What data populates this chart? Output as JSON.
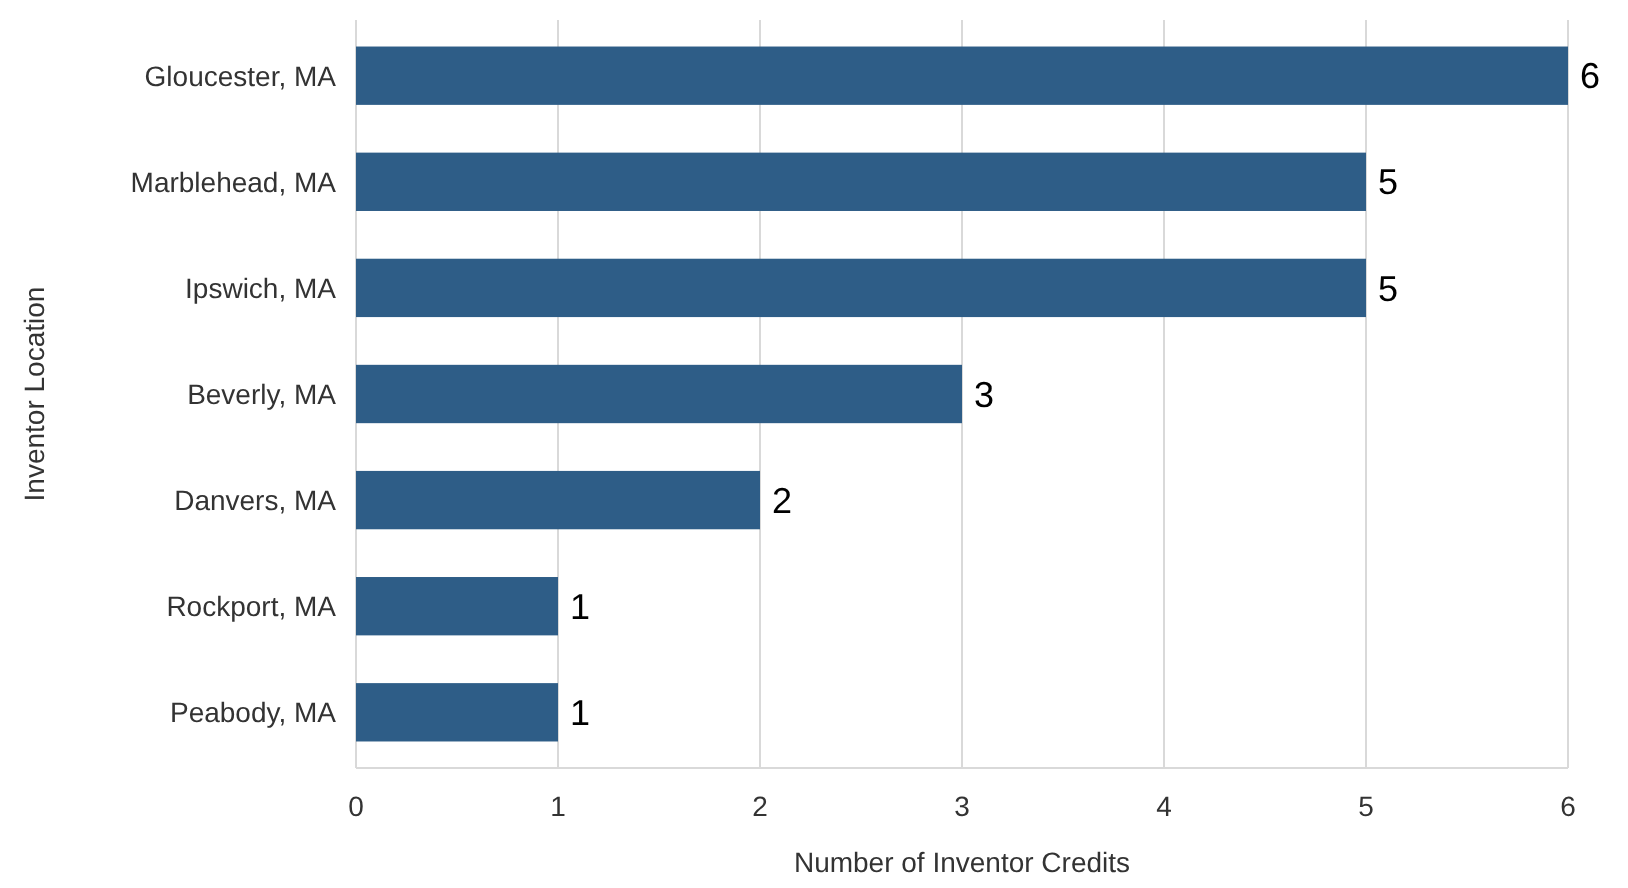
{
  "chart_data": {
    "type": "bar",
    "orientation": "horizontal",
    "xlabel": "Number of Inventor Credits",
    "ylabel": "Inventor Location",
    "categories": [
      "Gloucester, MA",
      "Marblehead, MA",
      "Ipswich, MA",
      "Beverly, MA",
      "Danvers, MA",
      "Rockport, MA",
      "Peabody, MA"
    ],
    "values": [
      6,
      5,
      5,
      3,
      2,
      1,
      1
    ],
    "color": "#2e5d87",
    "xlim": [
      0,
      6
    ],
    "xticks": [
      0,
      1,
      2,
      3,
      4,
      5,
      6
    ],
    "grid": "x",
    "data_labels": true
  }
}
